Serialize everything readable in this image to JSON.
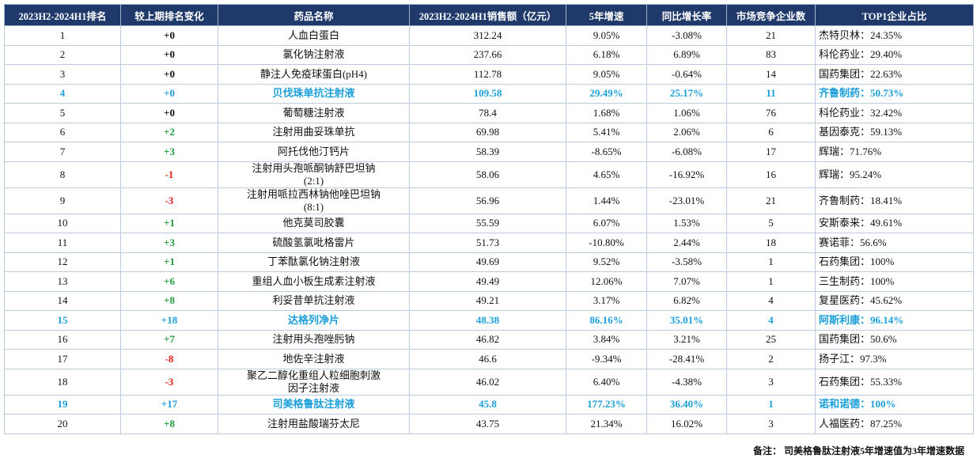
{
  "table": {
    "header": [
      "2023H2-2024H1排名",
      "较上期排名变化",
      "药品名称",
      "2023H2-2024H1销售额（亿元）",
      "5年增速",
      "同比增长率",
      "市场竞争企业数",
      "TOP1企业占比"
    ],
    "rows": [
      [
        "1",
        "+0",
        "人血白蛋白",
        "312.24",
        "9.05%",
        "-3.08%",
        "21",
        "杰特贝林：24.35%"
      ],
      [
        "2",
        "+0",
        "氯化钠注射液",
        "237.66",
        "6.18%",
        "6.89%",
        "83",
        "科伦药业：29.40%"
      ],
      [
        "3",
        "+0",
        "静注人免疫球蛋白(pH4)",
        "112.78",
        "9.05%",
        "-0.64%",
        "14",
        "国药集团：22.63%"
      ],
      [
        "4",
        "+0",
        "贝伐珠单抗注射液",
        "109.58",
        "29.49%",
        "25.17%",
        "11",
        "齐鲁制药：50.73%"
      ],
      [
        "5",
        "+0",
        "葡萄糖注射液",
        "78.4",
        "1.68%",
        "1.06%",
        "76",
        "科伦药业：32.42%"
      ],
      [
        "6",
        "+2",
        "注射用曲妥珠单抗",
        "69.98",
        "5.41%",
        "2.06%",
        "6",
        "基因泰克：59.13%"
      ],
      [
        "7",
        "+3",
        "阿托伐他汀钙片",
        "58.39",
        "-8.65%",
        "-6.08%",
        "17",
        "辉瑞：71.76%"
      ],
      [
        "8",
        "-1",
        "注射用头孢哌酮钠舒巴坦钠(2:1)",
        "58.06",
        "4.65%",
        "-16.92%",
        "16",
        "辉瑞：95.24%"
      ],
      [
        "9",
        "-3",
        "注射用哌拉西林钠他唑巴坦钠(8:1)",
        "56.96",
        "1.44%",
        "-23.01%",
        "21",
        "齐鲁制药：18.41%"
      ],
      [
        "10",
        "+1",
        "他克莫司胶囊",
        "55.59",
        "6.07%",
        "1.53%",
        "5",
        "安斯泰来：49.61%"
      ],
      [
        "11",
        "+3",
        "硫酸氢氯吡格雷片",
        "51.73",
        "-10.80%",
        "2.44%",
        "18",
        "赛诺菲：56.6%"
      ],
      [
        "12",
        "+1",
        "丁苯酞氯化钠注射液",
        "49.69",
        "9.52%",
        "-3.58%",
        "1",
        "石药集团：100%"
      ],
      [
        "13",
        "+6",
        "重组人血小板生成素注射液",
        "49.49",
        "12.06%",
        "7.07%",
        "1",
        "三生制药：100%"
      ],
      [
        "14",
        "+8",
        "利妥昔单抗注射液",
        "49.21",
        "3.17%",
        "6.82%",
        "4",
        "复星医药：45.62%"
      ],
      [
        "15",
        "+18",
        "达格列净片",
        "48.38",
        "86.16%",
        "35.01%",
        "4",
        "阿斯利康：96.14%"
      ],
      [
        "16",
        "+7",
        "注射用头孢唑肟钠",
        "46.82",
        "3.84%",
        "3.21%",
        "25",
        "国药集团：50.6%"
      ],
      [
        "17",
        "-8",
        "地佐辛注射液",
        "46.6",
        "-9.34%",
        "-28.41%",
        "2",
        "扬子江：97.3%"
      ],
      [
        "18",
        "-3",
        "聚乙二醇化重组人粒细胞刺激因子注射液",
        "46.02",
        "6.40%",
        "-4.38%",
        "3",
        "石药集团：55.33%"
      ],
      [
        "19",
        "+17",
        "司美格鲁肽注射液",
        "45.8",
        "177.23%",
        "36.40%",
        "1",
        "诺和诺德：100%"
      ],
      [
        "20",
        "+8",
        "注射用盐酸瑞芬太尼",
        "43.75",
        "21.34%",
        "16.02%",
        "3",
        "人福医药：87.25%"
      ]
    ],
    "highlight": {
      "color": "#1c9fd8",
      "rows": [
        3,
        14,
        18
      ]
    },
    "change_colors": {
      "up": "#1e9b3c",
      "down": "#e0201c"
    }
  },
  "note": "备注： 司美格鲁肽注射液5年增速值为3年增速数据"
}
